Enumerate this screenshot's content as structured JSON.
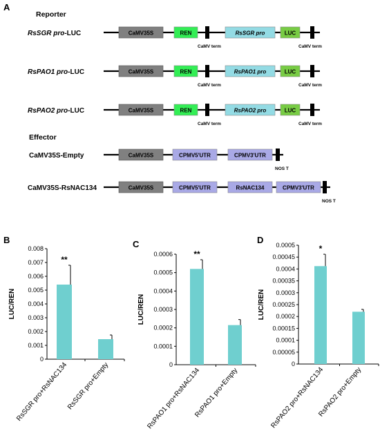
{
  "panel_a": {
    "letter": "A",
    "reporter_heading": "Reporter",
    "effector_heading": "Effector",
    "constructs": [
      {
        "label_italic": "RsSGR pro",
        "label_suffix": "-LUC",
        "boxes": [
          {
            "text": "CaMV35S",
            "italic": false,
            "color": "#808080"
          },
          {
            "text": "REN",
            "italic": false,
            "color": "#33ee55"
          },
          {
            "text": "RsSGR pro",
            "italic": true,
            "color": "#93dbe4"
          },
          {
            "text": "LUC",
            "italic": false,
            "color": "#78cc44"
          }
        ],
        "terms": [
          "CaMV term",
          "CaMV term"
        ]
      },
      {
        "label_italic": "RsPAO1 pro",
        "label_suffix": "-LUC",
        "boxes": [
          {
            "text": "CaMV35S",
            "italic": false,
            "color": "#808080"
          },
          {
            "text": "REN",
            "italic": false,
            "color": "#33ee55"
          },
          {
            "text": "RsPAO1 pro",
            "italic": true,
            "color": "#93dbe4"
          },
          {
            "text": "LUC",
            "italic": false,
            "color": "#78cc44"
          }
        ],
        "terms": [
          "CaMV term",
          "CaMV term"
        ]
      },
      {
        "label_italic": "RsPAO2 pro",
        "label_suffix": "-LUC",
        "boxes": [
          {
            "text": "CaMV35S",
            "italic": false,
            "color": "#808080"
          },
          {
            "text": "REN",
            "italic": false,
            "color": "#33ee55"
          },
          {
            "text": "RsPAO2 pro",
            "italic": true,
            "color": "#93dbe4"
          },
          {
            "text": "LUC",
            "italic": false,
            "color": "#78cc44"
          }
        ],
        "terms": [
          "CaMV term",
          "CaMV term"
        ]
      },
      {
        "label_italic": "",
        "label_suffix": "CaMV35S-Empty",
        "boxes": [
          {
            "text": "CaMV35S",
            "italic": false,
            "color": "#808080"
          },
          {
            "text": "CPMV5'UTR",
            "italic": false,
            "color": "#a9a9e6"
          },
          {
            "text": "CPMV3'UTR",
            "italic": false,
            "color": "#a9a9e6"
          }
        ],
        "terms": [
          "NOS T"
        ]
      },
      {
        "label_italic": "",
        "label_suffix": "CaMV35S-RsNAC134",
        "boxes": [
          {
            "text": "CaMV35S",
            "italic": false,
            "color": "#808080"
          },
          {
            "text": "CPMV5'UTR",
            "italic": false,
            "color": "#a9a9e6"
          },
          {
            "text": "RsNAC134",
            "italic": false,
            "color": "#a9a9e6"
          },
          {
            "text": "CPMV3'UTR",
            "italic": false,
            "color": "#a9a9e6"
          }
        ],
        "terms": [
          "NOS T"
        ]
      }
    ]
  },
  "chart_data": [
    {
      "type": "bar",
      "panel": "B",
      "ylabel": "LUC/REN",
      "categories": [
        "RsSGR pro+RsNAC134",
        "RsSGR pro+Empty"
      ],
      "values": [
        0.0054,
        0.00145
      ],
      "errors": [
        0.0014,
        0.0003
      ],
      "significance": [
        "**",
        ""
      ],
      "ylim": [
        0,
        0.008
      ],
      "yticks": [
        0,
        0.001,
        0.002,
        0.003,
        0.004,
        0.005,
        0.006,
        0.007,
        0.008
      ],
      "ytick_labels": [
        "0",
        "0.001",
        "0.002",
        "0.003",
        "0.004",
        "0.005",
        "0.006",
        "0.007",
        "0.008"
      ],
      "bar_color": "#6fcfcf",
      "grid": false
    },
    {
      "type": "bar",
      "panel": "C",
      "ylabel": "LUC/REN",
      "categories": [
        "RsPAO1 pro+RsNAC134",
        "RsPAO1 pro+Empty"
      ],
      "values": [
        0.00052,
        0.000215
      ],
      "errors": [
        5e-05,
        3e-05
      ],
      "significance": [
        "**",
        ""
      ],
      "ylim": [
        0,
        0.0006
      ],
      "yticks": [
        0,
        0.0001,
        0.0002,
        0.0003,
        0.0004,
        0.0005,
        0.0006
      ],
      "ytick_labels": [
        "0",
        "0.0001",
        "0.0002",
        "0.0003",
        "0.0004",
        "0.0005",
        "0.0006"
      ],
      "bar_color": "#6fcfcf",
      "grid": false
    },
    {
      "type": "bar",
      "panel": "D",
      "ylabel": "LUC/REN",
      "categories": [
        "RsPAO2 pro+RsNAC134",
        "RsPAO2 pro+Empty"
      ],
      "values": [
        0.000412,
        0.00022
      ],
      "errors": [
        5e-05,
        1e-05
      ],
      "significance": [
        "*",
        ""
      ],
      "ylim": [
        0,
        0.0005
      ],
      "yticks": [
        0,
        5e-05,
        0.0001,
        0.00015,
        0.0002,
        0.00025,
        0.0003,
        0.00035,
        0.0004,
        0.00045,
        0.0005
      ],
      "ytick_labels": [
        "0",
        "0.00005",
        "0.0001",
        "0.00015",
        "0.0002",
        "0.00025",
        "0.0003",
        "0.00035",
        "0.0004",
        "0.00045",
        "0.0005"
      ],
      "bar_color": "#6fcfcf",
      "grid": false
    }
  ]
}
